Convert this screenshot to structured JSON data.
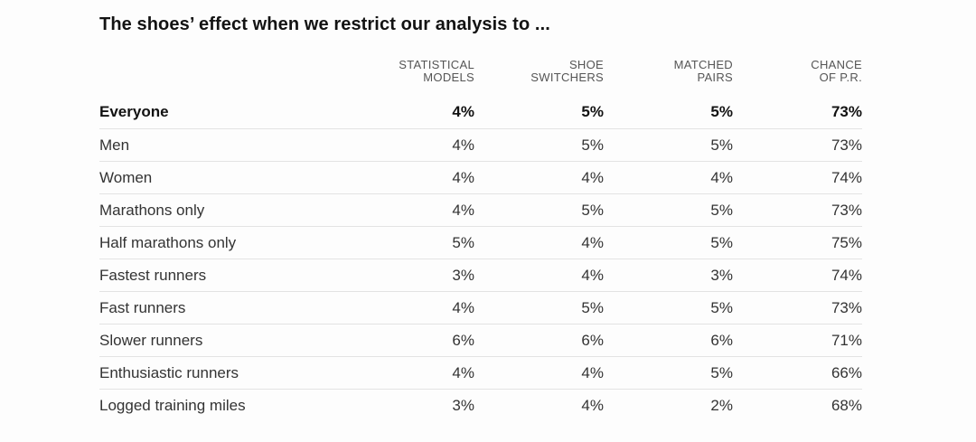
{
  "title": "The shoes’ effect when we restrict our analysis to ...",
  "colors": {
    "background": "#fdfdfd",
    "title_text": "#131313",
    "header_text": "#555555",
    "body_text": "#333333",
    "bold_row_text": "#121212",
    "divider": "#e3e3e3"
  },
  "table": {
    "columns": [
      {
        "line1": "STATISTICAL",
        "line2": "MODELS"
      },
      {
        "line1": "SHOE",
        "line2": "SWITCHERS"
      },
      {
        "line1": "MATCHED",
        "line2": "PAIRS"
      },
      {
        "line1": "CHANCE",
        "line2": "OF P.R."
      }
    ],
    "rows": [
      {
        "label": "Everyone",
        "bold": true,
        "values": [
          "4%",
          "5%",
          "5%",
          "73%"
        ]
      },
      {
        "label": "Men",
        "bold": false,
        "values": [
          "4%",
          "5%",
          "5%",
          "73%"
        ]
      },
      {
        "label": "Women",
        "bold": false,
        "values": [
          "4%",
          "4%",
          "4%",
          "74%"
        ]
      },
      {
        "label": "Marathons only",
        "bold": false,
        "values": [
          "4%",
          "5%",
          "5%",
          "73%"
        ]
      },
      {
        "label": "Half marathons only",
        "bold": false,
        "values": [
          "5%",
          "4%",
          "5%",
          "75%"
        ]
      },
      {
        "label": "Fastest runners",
        "bold": false,
        "values": [
          "3%",
          "4%",
          "3%",
          "74%"
        ]
      },
      {
        "label": "Fast runners",
        "bold": false,
        "values": [
          "4%",
          "5%",
          "5%",
          "73%"
        ]
      },
      {
        "label": "Slower runners",
        "bold": false,
        "values": [
          "6%",
          "6%",
          "6%",
          "71%"
        ]
      },
      {
        "label": "Enthusiastic runners",
        "bold": false,
        "values": [
          "4%",
          "4%",
          "5%",
          "66%"
        ]
      },
      {
        "label": "Logged training miles",
        "bold": false,
        "values": [
          "3%",
          "4%",
          "2%",
          "68%"
        ]
      }
    ]
  },
  "chart_data": {
    "type": "table",
    "title": "The shoes’ effect when we restrict our analysis to ...",
    "columns": [
      "Statistical models",
      "Shoe switchers",
      "Matched pairs",
      "Chance of P.R."
    ],
    "unit": "%",
    "row_labels": [
      "Everyone",
      "Men",
      "Women",
      "Marathons only",
      "Half marathons only",
      "Fastest runners",
      "Fast runners",
      "Slower runners",
      "Enthusiastic runners",
      "Logged training miles"
    ],
    "values": [
      [
        4,
        5,
        5,
        73
      ],
      [
        4,
        5,
        5,
        73
      ],
      [
        4,
        4,
        4,
        74
      ],
      [
        4,
        5,
        5,
        73
      ],
      [
        5,
        4,
        5,
        75
      ],
      [
        3,
        4,
        3,
        74
      ],
      [
        4,
        5,
        5,
        73
      ],
      [
        6,
        6,
        6,
        71
      ],
      [
        4,
        4,
        5,
        66
      ],
      [
        3,
        4,
        2,
        68
      ]
    ]
  }
}
